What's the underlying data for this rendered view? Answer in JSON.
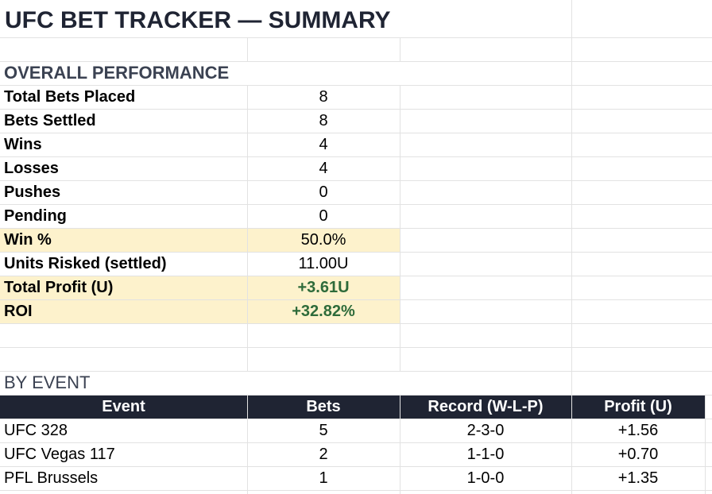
{
  "title": "UFC BET TRACKER — SUMMARY",
  "overall": {
    "heading": "OVERALL PERFORMANCE",
    "rows": [
      {
        "label": "Total Bets Placed",
        "value": "8"
      },
      {
        "label": "Bets Settled",
        "value": "8"
      },
      {
        "label": "Wins",
        "value": "4"
      },
      {
        "label": "Losses",
        "value": "4"
      },
      {
        "label": "Pushes",
        "value": "0"
      },
      {
        "label": "Pending",
        "value": "0"
      },
      {
        "label": "Win %",
        "value": "50.0%",
        "fill": "#fdf2cc"
      },
      {
        "label": "Units Risked (settled)",
        "value": "11.00U"
      },
      {
        "label": "Total Profit (U)",
        "value": "+3.61U",
        "fill": "#fdf2cc",
        "value_color": "#2e6b3a"
      },
      {
        "label": "ROI",
        "value": "+32.82%",
        "fill": "#fdf2cc",
        "value_color": "#2e6b3a"
      }
    ]
  },
  "by_event": {
    "heading": "BY EVENT",
    "columns": [
      "Event",
      "Bets",
      "Record (W-L-P)",
      "Profit (U)"
    ],
    "rows": [
      [
        "UFC 328",
        "5",
        "2-3-0",
        "+1.56"
      ],
      [
        "UFC Vegas 117",
        "2",
        "1-1-0",
        "+0.70"
      ],
      [
        "PFL Brussels",
        "1",
        "1-0-0",
        "+1.35"
      ]
    ]
  }
}
